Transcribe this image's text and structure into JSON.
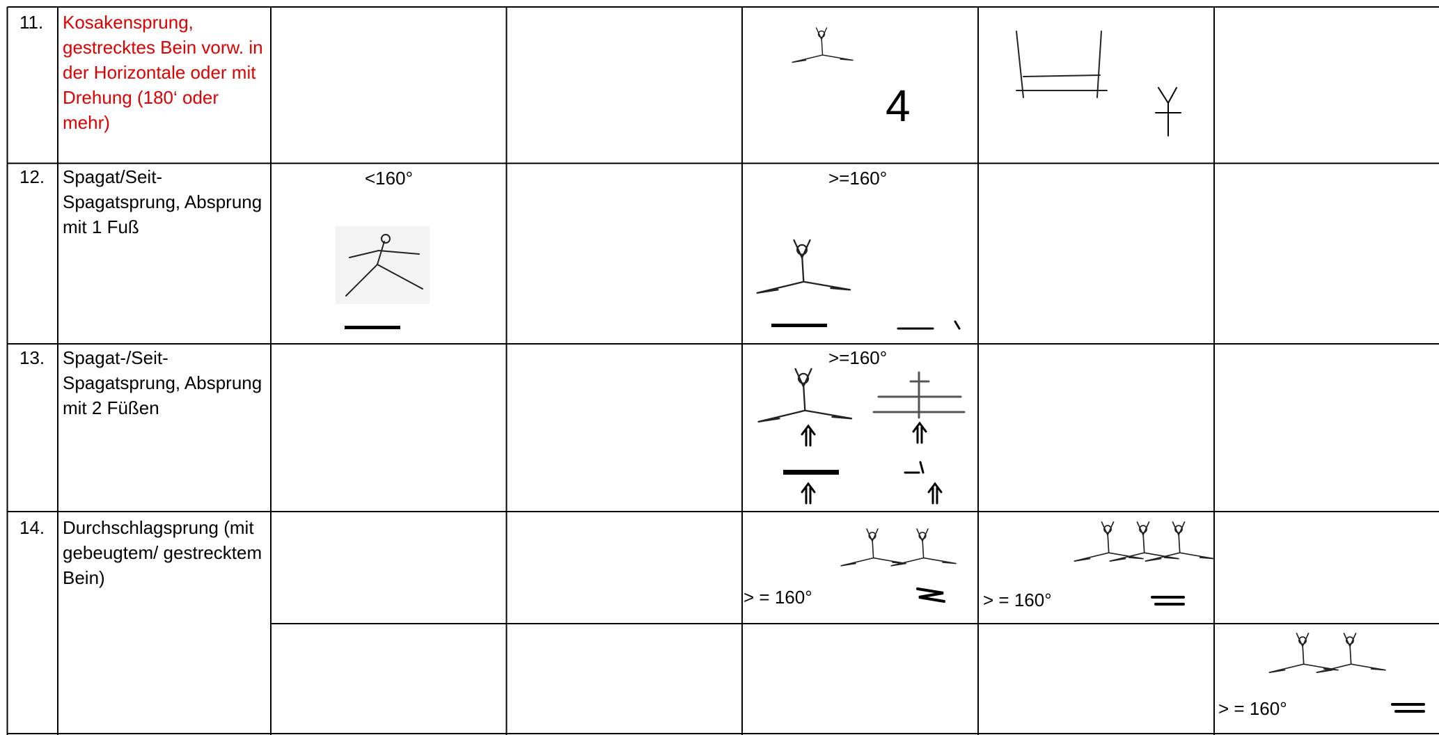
{
  "rows": [
    {
      "number": "11.",
      "label": "Kosakensprung, gestrecktes Bein vorw. in der Horizontale oder mit Drehung (180‘ oder mehr)",
      "symbol": "4"
    },
    {
      "number": "12.",
      "label": "Spagat/Seit-Spagatsprung, Absprung mit 1 Fuß",
      "notes": [
        "<160°",
        ">=160°"
      ]
    },
    {
      "number": "13.",
      "label": "Spagat-/Seit-Spagatsprung, Absprung mit 2 Füßen",
      "notes": [
        ">=160°"
      ]
    },
    {
      "number": "14.",
      "label": "Durchschlagsprung (mit gebeugtem/ gestrecktem Bein)",
      "notes": [
        "> = 160°",
        "> = 160°",
        "> = 160°"
      ]
    }
  ]
}
